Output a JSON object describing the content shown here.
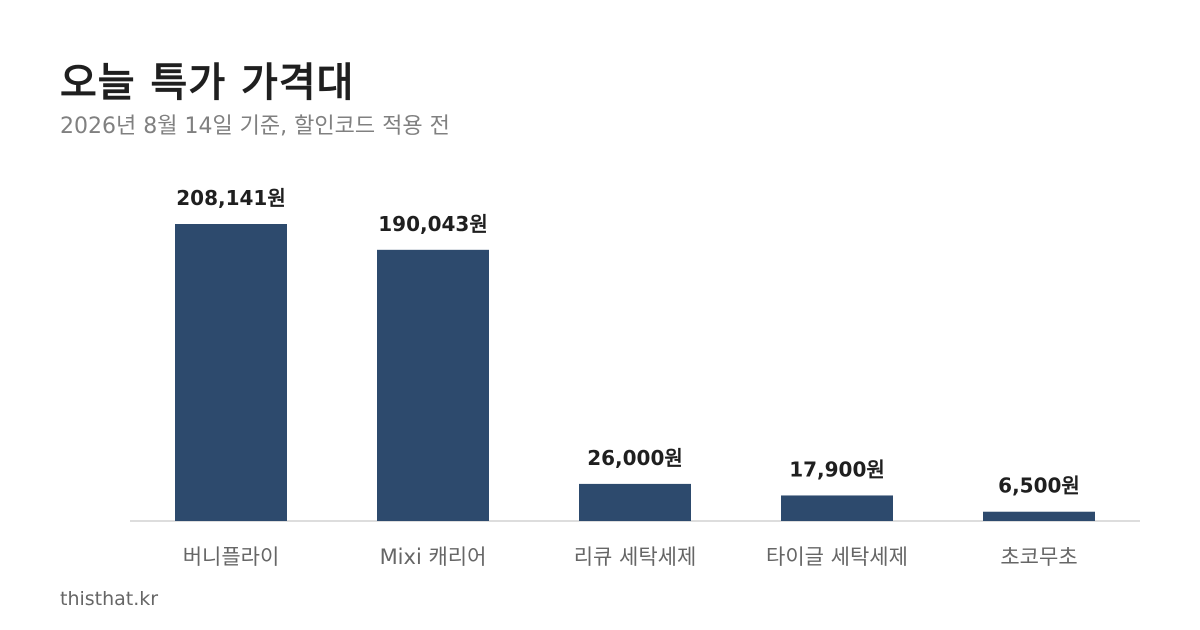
{
  "header": {
    "title": "오늘 특가 가격대",
    "subtitle": "2026년 8월 14일 기준, 할인코드 적용 전"
  },
  "footer": {
    "source": "thisthat.kr"
  },
  "colors": {
    "bar": "#2d4a6d",
    "axis": "#dddddd"
  },
  "chart_data": {
    "type": "bar",
    "categories": [
      "버니플라이",
      "Mixi 캐리어",
      "리큐 세탁세제",
      "타이글 세탁세제",
      "초코무초"
    ],
    "values": [
      208141,
      190043,
      26000,
      17900,
      6500
    ],
    "value_labels": [
      "208,141원",
      "190,043원",
      "26,000원",
      "17,900원",
      "6,500원"
    ],
    "title": "오늘 특가 가격대",
    "subtitle": "2026년 8월 14일 기준, 할인코드 적용 전",
    "xlabel": "",
    "ylabel": "",
    "ylim": [
      0,
      208141
    ],
    "grid": false,
    "legend": "none"
  }
}
